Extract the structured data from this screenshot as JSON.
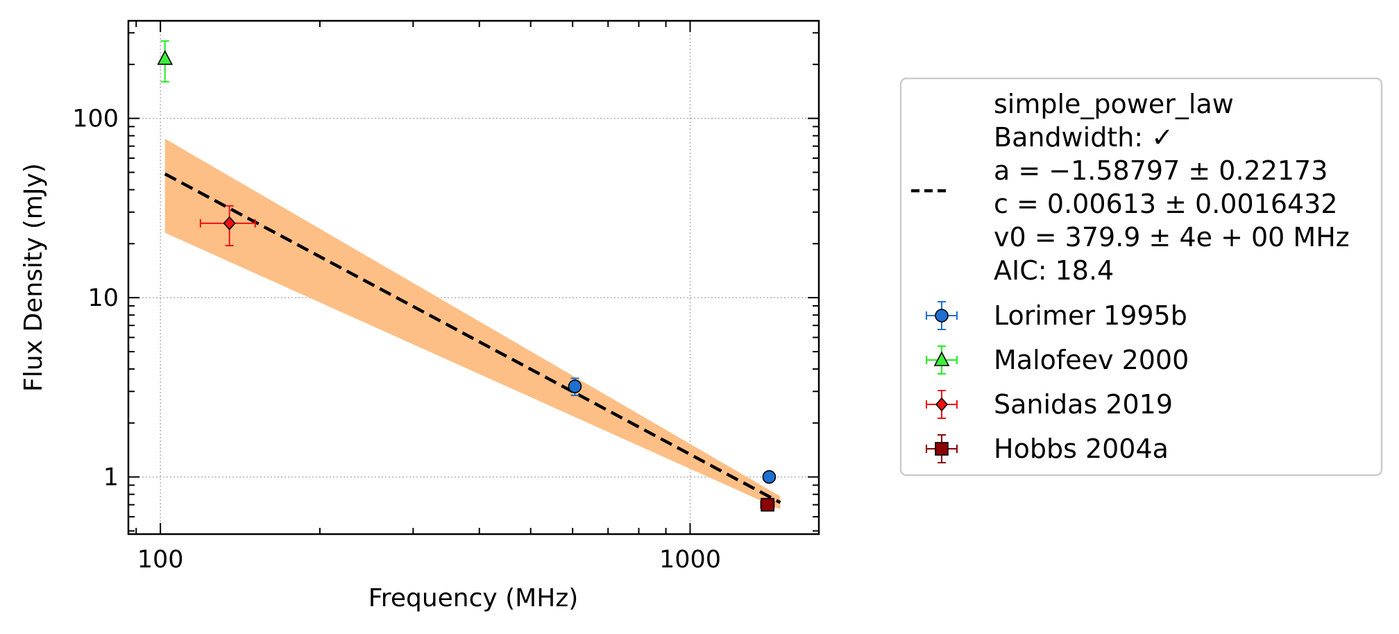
{
  "chart_data": {
    "type": "scatter",
    "xlabel": "Frequency (MHz)",
    "ylabel": "Flux Density (mJy)",
    "x_scale": "log",
    "y_scale": "log",
    "xlim": [
      87,
      1750
    ],
    "ylim": [
      0.48,
      350
    ],
    "grid": true,
    "legend_placement": "outside-right",
    "x_ticks": [
      {
        "value": 100,
        "label": "100"
      },
      {
        "value": 1000,
        "label": "1000"
      }
    ],
    "y_ticks": [
      {
        "value": 1,
        "label": "1"
      },
      {
        "value": 10,
        "label": "10"
      },
      {
        "value": 100,
        "label": "100"
      }
    ],
    "fit": {
      "model": "simple_power_law",
      "legend_lines": [
        "simple_power_law",
        "Bandwidth: ✓",
        "a = −1.58797 ± 0.22173",
        "c = 0.00613 ± 0.0016432",
        "v0 = 379.9 ± 4e + 00 MHz",
        "AIC: 18.4"
      ],
      "a": -1.58797,
      "c": 0.00613,
      "v0": 379.9,
      "x_range": [
        102,
        1480
      ],
      "line": {
        "x": [
          102,
          1480
        ],
        "y": [
          49,
          0.72
        ]
      },
      "band": {
        "x": [
          102,
          1480
        ],
        "lower": [
          23,
          0.66
        ],
        "upper": [
          77,
          0.78
        ]
      },
      "line_color": "#000000",
      "band_color": "#fdbf86"
    },
    "series": [
      {
        "name": "Lorimer 1995b",
        "marker": "circle",
        "color": "#1f6fd1",
        "ecolor": "#1f6fd1",
        "points": [
          {
            "x": 606,
            "y": 3.2,
            "yerr": [
              0.35,
              0.35
            ],
            "xerr": [
              0,
              0
            ]
          },
          {
            "x": 1410,
            "y": 1.0,
            "yerr": [
              0.05,
              0.05
            ],
            "xerr": [
              0,
              0
            ]
          }
        ]
      },
      {
        "name": "Malofeev 2000",
        "marker": "triangle",
        "color": "#3cf03c",
        "ecolor": "#22ee22",
        "points": [
          {
            "x": 102,
            "y": 215,
            "yerr": [
              55,
              55
            ],
            "xerr": [
              0,
              0
            ]
          }
        ]
      },
      {
        "name": "Sanidas 2019",
        "marker": "diamond",
        "color": "#ee1111",
        "ecolor": "#ee1111",
        "points": [
          {
            "x": 135,
            "y": 26,
            "yerr": [
              6.5,
              6.5
            ],
            "xerr": [
              16,
              16
            ]
          }
        ]
      },
      {
        "name": "Hobbs 2004a",
        "marker": "square",
        "color": "#8b0000",
        "ecolor": "#8b0000",
        "points": [
          {
            "x": 1400,
            "y": 0.7,
            "yerr": [
              0.05,
              0.05
            ],
            "xerr": [
              40,
              40
            ]
          }
        ]
      }
    ]
  }
}
